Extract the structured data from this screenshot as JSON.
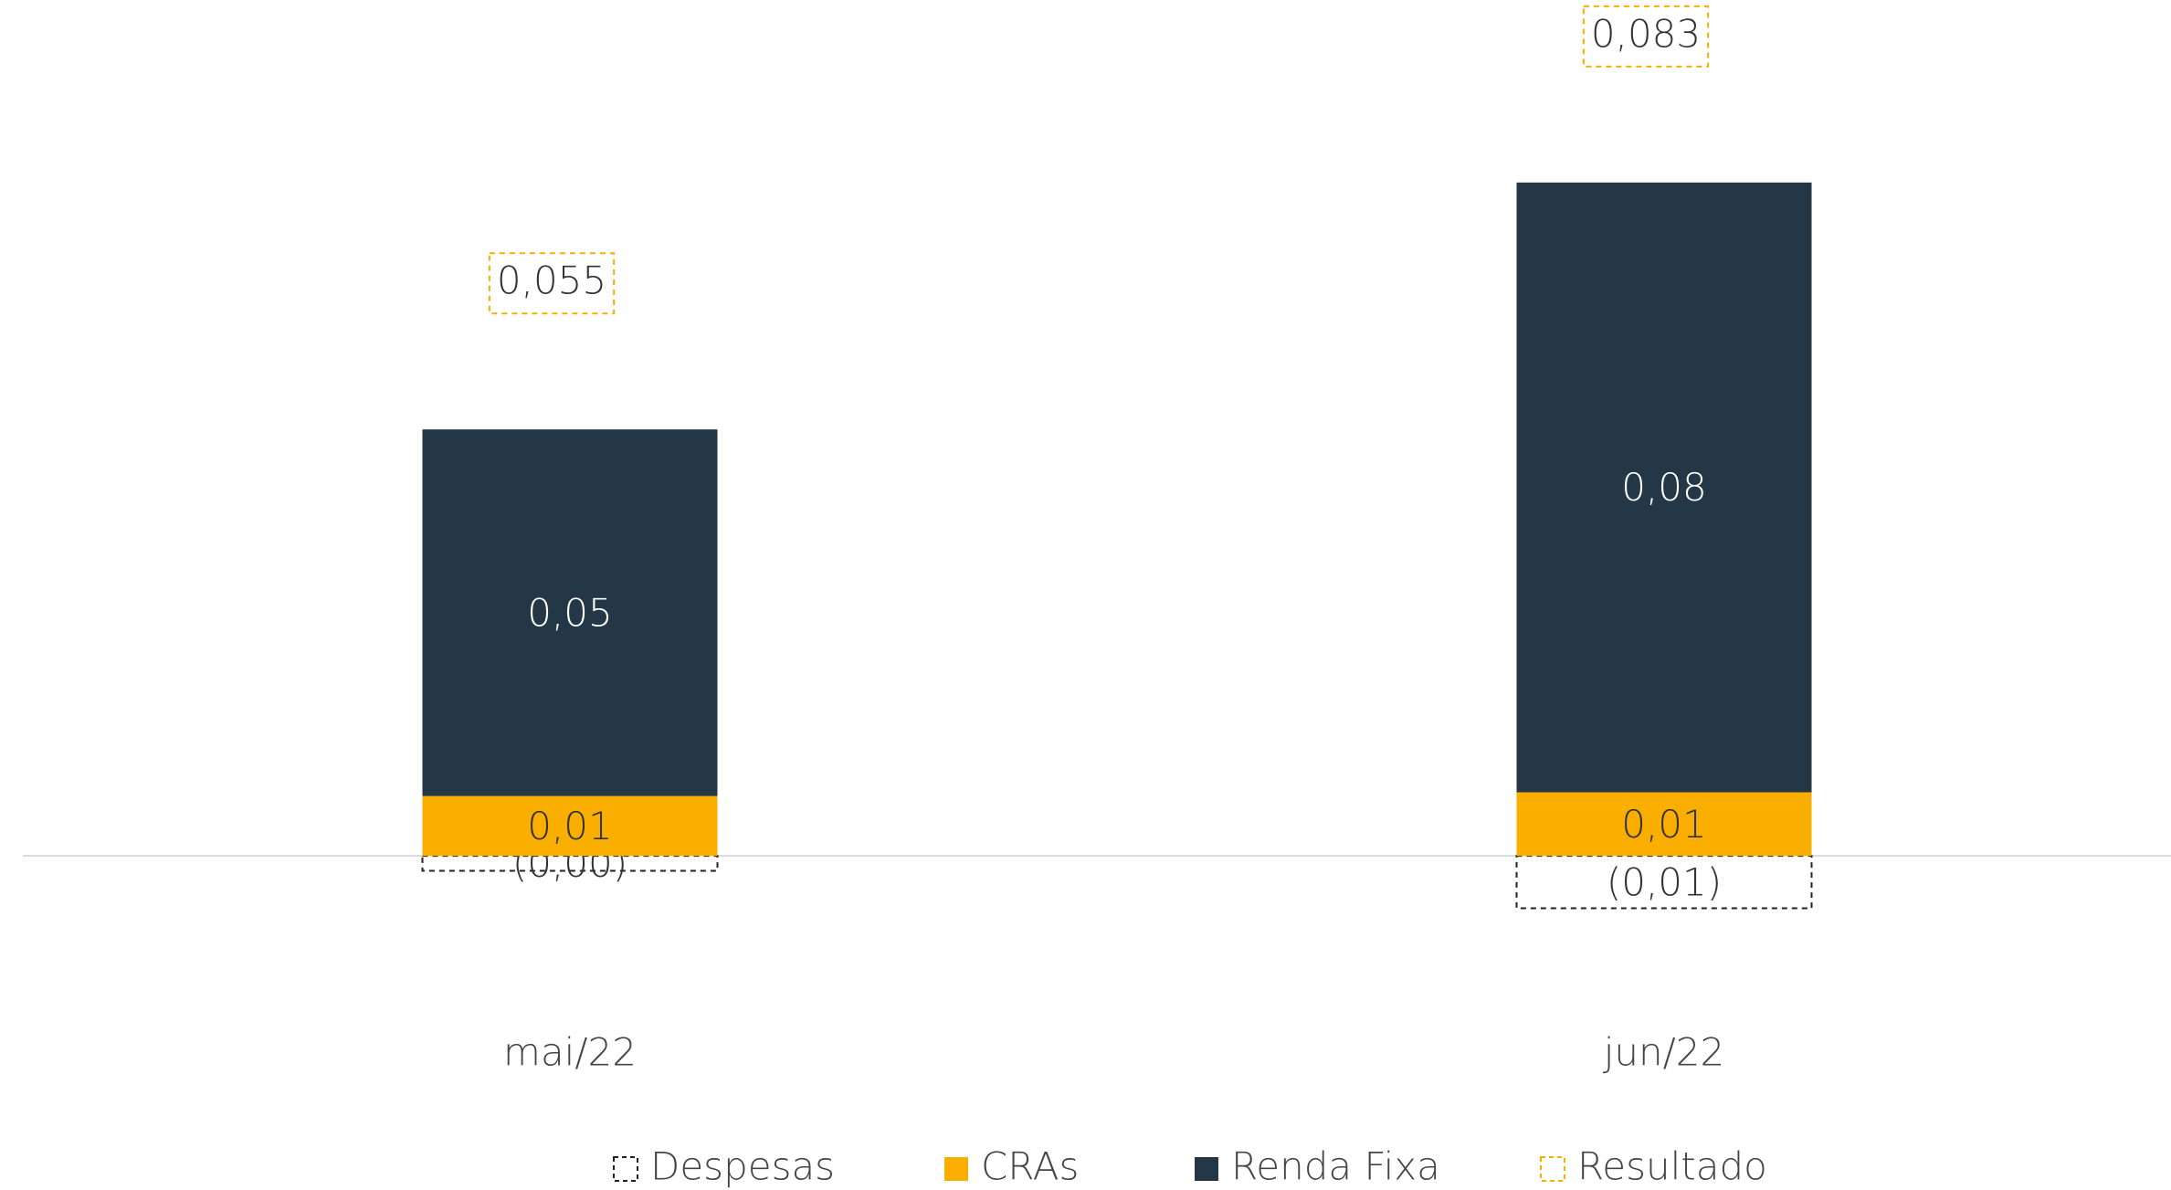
{
  "chart_data": {
    "type": "stacked_bar",
    "categories": [
      "mai/22",
      "jun/22"
    ],
    "series": [
      {
        "name": "Despesas",
        "color": "#222222",
        "dashed": true,
        "values": [
          -0.002,
          -0.007
        ],
        "value_labels": [
          "(0,00)",
          "(0,01)"
        ]
      },
      {
        "name": "CRAs",
        "color": "#F9AE00",
        "values": [
          0.008,
          0.0085
        ],
        "value_labels": [
          "0,01",
          "0,01"
        ]
      },
      {
        "name": "Renda Fixa",
        "color": "#243746",
        "values": [
          0.049,
          0.0815
        ],
        "value_labels": [
          "0,05",
          "0,08"
        ]
      }
    ],
    "totals": {
      "name": "Resultado",
      "color": "#F9AE00",
      "dashed": true,
      "values": [
        0.055,
        0.083
      ],
      "value_labels": [
        "0,055",
        "0,083"
      ]
    },
    "ylim": [
      -0.02,
      0.11
    ]
  }
}
